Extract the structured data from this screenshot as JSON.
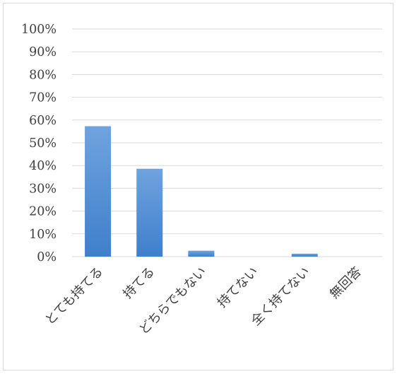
{
  "chart_data": {
    "type": "bar",
    "title": "",
    "xlabel": "",
    "ylabel": "",
    "categories": [
      "とても持てる",
      "持てる",
      "どちらでもない",
      "持てない",
      "全く持てない",
      "無回答"
    ],
    "values": [
      57.3,
      38.6,
      2.6,
      0,
      1.3,
      0
    ],
    "value_format": "percent",
    "ylim": [
      0,
      100
    ],
    "y_ticks": [
      "0%",
      "10%",
      "20%",
      "30%",
      "40%",
      "50%",
      "60%",
      "70%",
      "80%",
      "90%",
      "100%"
    ],
    "grid": true,
    "legend": "none",
    "colors": {
      "bar_top": "#6fa3de",
      "bar_bottom": "#3f7fcc",
      "grid": "#d9d9d9",
      "text": "#404040"
    }
  }
}
